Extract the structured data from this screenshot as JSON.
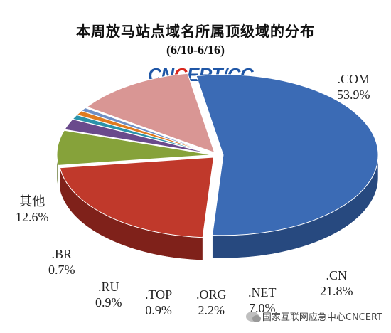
{
  "header": {
    "title": "本周放马站点域名所属顶级域的分布",
    "date_range": "(6/10-6/16)",
    "logo": {
      "part1": "CN",
      "part2": "C",
      "part3": "ERT/CC",
      "accent": "#d9261c",
      "color": "#1f56a6"
    }
  },
  "chart_data": {
    "type": "pie",
    "title": "本周放马站点域名所属顶级域的分布",
    "subtitle": "(6/10-6/16)",
    "style": "3d-exploded",
    "slices": [
      {
        "label": ".COM",
        "value": 53.9,
        "value_label": "53.9%",
        "color": "#3b6bb5",
        "side": "#27497f"
      },
      {
        "label": ".CN",
        "value": 21.8,
        "value_label": "21.8%",
        "color": "#c0392b",
        "side": "#7f211a"
      },
      {
        "label": ".NET",
        "value": 7.0,
        "value_label": "7.0%",
        "color": "#86a23a",
        "side": "#596d24"
      },
      {
        "label": ".ORG",
        "value": 2.2,
        "value_label": "2.2%",
        "color": "#6a4a8c",
        "side": "#46305d"
      },
      {
        "label": ".TOP",
        "value": 0.9,
        "value_label": "0.9%",
        "color": "#2b93aa",
        "side": "#1b6272"
      },
      {
        "label": ".RU",
        "value": 0.9,
        "value_label": "0.9%",
        "color": "#e07b20",
        "side": "#96510f"
      },
      {
        "label": ".BR",
        "value": 0.7,
        "value_label": "0.7%",
        "color": "#6f8fc6",
        "side": "#4a5f85"
      },
      {
        "label": "其他",
        "value": 12.6,
        "value_label": "12.6%",
        "color": "#d99694",
        "side": "#a0605e"
      }
    ]
  },
  "watermark": {
    "text": "国家互联网应急中心CNCERT",
    "icon": "wechat-icon"
  }
}
